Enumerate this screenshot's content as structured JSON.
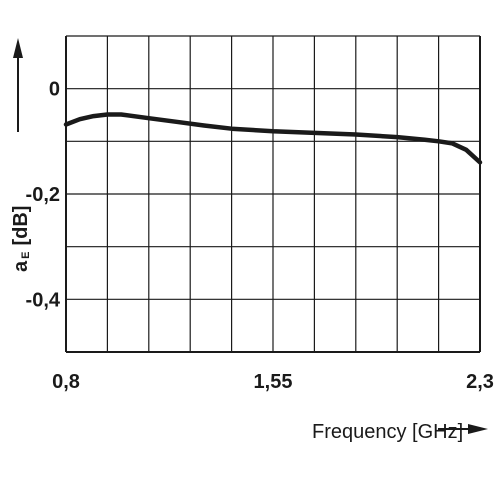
{
  "chart_data": {
    "type": "line",
    "xlabel": "Frequency [GHz]",
    "ylabel": {
      "symbol": "a",
      "subscript": "E",
      "unit": "[dB]"
    },
    "xlim": [
      0.8,
      2.3
    ],
    "ylim": [
      -0.5,
      0.1
    ],
    "x_ticks": [
      {
        "value": 0.8,
        "label": "0,8"
      },
      {
        "value": 1.55,
        "label": "1,55"
      },
      {
        "value": 2.3,
        "label": "2,3"
      }
    ],
    "y_ticks": [
      {
        "value": 0,
        "label": "0"
      },
      {
        "value": -0.2,
        "label": "-0,2"
      },
      {
        "value": -0.4,
        "label": "-0,4"
      }
    ],
    "grid": true,
    "series": [
      {
        "color": "#1a1a1a",
        "x": [
          0.8,
          0.85,
          0.9,
          0.95,
          1.0,
          1.1,
          1.2,
          1.3,
          1.4,
          1.55,
          1.7,
          1.85,
          2.0,
          2.1,
          2.15,
          2.2,
          2.25,
          2.3
        ],
        "y": [
          -0.068,
          -0.058,
          -0.052,
          -0.049,
          -0.049,
          -0.056,
          -0.063,
          -0.07,
          -0.076,
          -0.081,
          -0.084,
          -0.087,
          -0.092,
          -0.097,
          -0.1,
          -0.104,
          -0.116,
          -0.14
        ]
      }
    ]
  }
}
